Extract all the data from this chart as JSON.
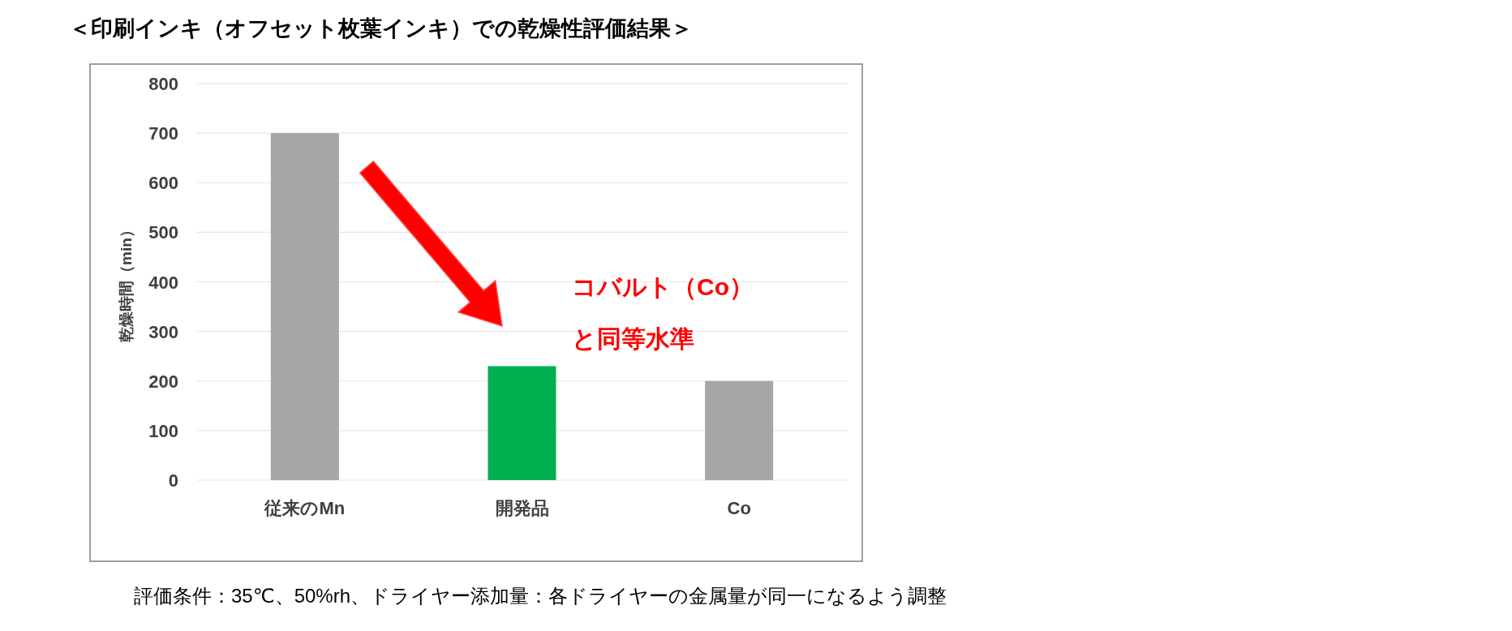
{
  "chart_data": {
    "type": "bar",
    "title": "＜印刷インキ（オフセット枚葉インキ）での乾燥性評価結果＞",
    "ylabel": "乾燥時間（min）",
    "categories": [
      "従来のMn",
      "開発品",
      "Co"
    ],
    "values": [
      700,
      230,
      200
    ],
    "colors": [
      "#a6a6a6",
      "#00b050",
      "#a6a6a6"
    ],
    "ylim": [
      0,
      800
    ],
    "yticks": [
      0,
      100,
      200,
      300,
      400,
      500,
      600,
      700,
      800
    ],
    "grid": "y",
    "annotations": [
      "コバルト（Co）",
      "と同等水準",
      "評価条件：35℃、50%rh、ドライヤー添加量：各ドライヤーの金属量が同一になるよう調整"
    ]
  }
}
